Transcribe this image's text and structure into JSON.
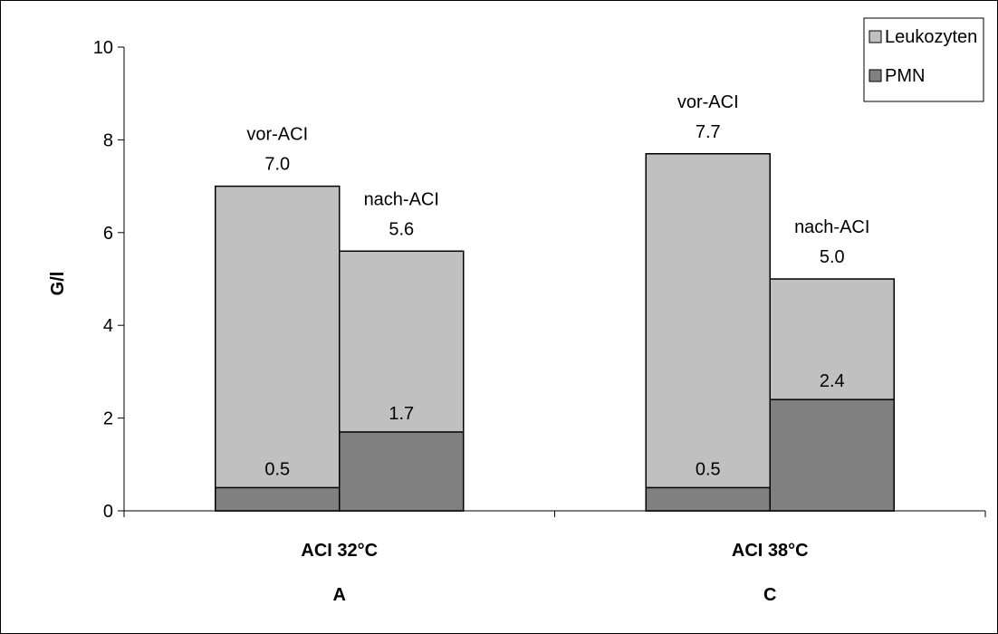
{
  "chart_data": {
    "type": "bar",
    "stacked": false,
    "ylabel": "G/l",
    "xlabel": "",
    "ylim": [
      0,
      10
    ],
    "yticks": [
      0,
      2,
      4,
      6,
      8,
      10
    ],
    "grid": false,
    "legend_position": "top-right",
    "groups": [
      {
        "label": "ACI 32°C",
        "sublabel": "A",
        "bars": [
          {
            "name": "vor-ACI",
            "leukozyten": 7.0,
            "pmn": 0.5,
            "leuko_label": "7.0",
            "pmn_label": "0.5"
          },
          {
            "name": "nach-ACI",
            "leukozyten": 5.6,
            "pmn": 1.7,
            "leuko_label": "5.6",
            "pmn_label": "1.7"
          }
        ]
      },
      {
        "label": "ACI 38°C",
        "sublabel": "C",
        "bars": [
          {
            "name": "vor-ACI",
            "leukozyten": 7.7,
            "pmn": 0.5,
            "leuko_label": "7.7",
            "pmn_label": "0.5"
          },
          {
            "name": "nach-ACI",
            "leukozyten": 5.0,
            "pmn": 2.4,
            "leuko_label": "5.0",
            "pmn_label": "2.4"
          }
        ]
      }
    ],
    "series": [
      {
        "name": "Leukozyten",
        "color": "#c0c0c0"
      },
      {
        "name": "PMN",
        "color": "#808080"
      }
    ]
  }
}
